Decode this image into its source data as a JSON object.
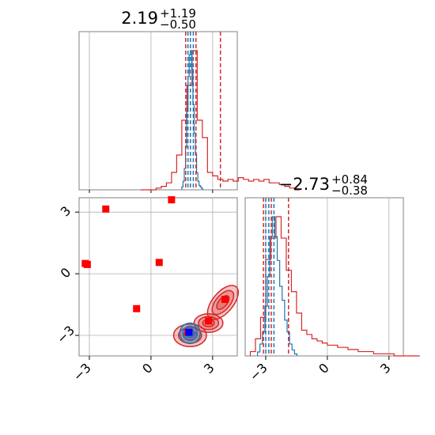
{
  "colors": {
    "blue": "#1f77b4",
    "red": "#d62728",
    "marker_red": "#ff0000",
    "marker_blue": "#0000ff",
    "grid": "#b0b0b0",
    "spine": "#808080"
  },
  "chart_data": {
    "type": "corner",
    "grid": true,
    "params": [
      {
        "title_value": "2.19",
        "title_plus": "+1.19",
        "title_minus": "−0.50",
        "range": [
          -3.5,
          4.2
        ],
        "ticks": [
          -3,
          0,
          3
        ],
        "tick_labels": [
          "−3",
          "0",
          "3"
        ]
      },
      {
        "title_value": "−2.73",
        "title_plus": "+0.84",
        "title_minus": "−0.38",
        "range": [
          -4.0,
          3.7
        ],
        "ticks": [
          -3,
          0,
          3
        ],
        "tick_labels": [
          "−3",
          "0",
          "3"
        ]
      }
    ],
    "series": [
      {
        "color_key": "red",
        "hist1d": [
          {
            "param": 0,
            "bin_width": 0.25,
            "start": -0.5,
            "values": [
              0,
              0,
              0,
              1,
              2,
              4,
              10,
              20,
              40,
              60,
              80,
              40,
              30,
              10,
              8,
              6,
              5,
              6,
              5,
              7,
              6,
              5,
              6,
              5,
              6,
              4,
              4,
              3,
              2,
              1,
              0
            ]
          },
          {
            "param": 1,
            "bin_width": 0.25,
            "start": -3.75,
            "values": [
              2,
              8,
              18,
              45,
              55,
              65,
              55,
              40,
              30,
              20,
              12,
              10,
              8,
              7,
              6,
              5,
              5,
              4,
              4,
              3,
              3,
              2,
              2,
              2,
              1,
              1,
              1,
              1,
              0,
              0,
              0,
              0,
              0
            ]
          }
        ],
        "quantile_lines": [
          {
            "param": 0,
            "x": [
              1.69,
              2.19,
              3.38
            ]
          },
          {
            "param": 1,
            "x": [
              -3.11,
              -2.73,
              -1.89
            ]
          }
        ],
        "density_blobs": [
          {
            "cx": 1.9,
            "cy": -3.0,
            "rx": 0.8,
            "ry": 0.55,
            "angle": 0
          },
          {
            "cx": 2.8,
            "cy": -2.4,
            "rx": 0.7,
            "ry": 0.45,
            "angle": 0
          },
          {
            "cx": 3.5,
            "cy": -1.4,
            "rx": 1.0,
            "ry": 0.5,
            "angle": -50
          }
        ],
        "markers": [
          {
            "x": -3.2,
            "y": 0.5
          },
          {
            "x": -3.1,
            "y": 0.45
          },
          {
            "x": -2.2,
            "y": 3.15
          },
          {
            "x": -0.7,
            "y": -1.7
          },
          {
            "x": 0.4,
            "y": 0.55
          },
          {
            "x": 1.0,
            "y": 3.6
          },
          {
            "x": 2.8,
            "y": -2.3
          },
          {
            "x": 3.6,
            "y": -1.25
          },
          {
            "x": 1.8,
            "y": -2.85
          }
        ]
      },
      {
        "color_key": "blue",
        "hist1d": [
          {
            "param": 0,
            "bin_width": 0.06,
            "start": 1.5,
            "values": [
              2,
              6,
              15,
              30,
              55,
              80,
              95,
              98,
              85,
              60,
              40,
              25,
              12,
              6,
              3,
              2,
              1
            ]
          },
          {
            "param": 1,
            "bin_width": 0.12,
            "start": -3.4,
            "values": [
              2,
              6,
              12,
              25,
              40,
              60,
              70,
              60,
              48,
              35,
              28,
              18,
              12,
              6,
              3,
              1
            ]
          }
        ],
        "quantile_lines": [
          {
            "param": 0,
            "x": [
              1.8,
              1.92,
              2.06
            ]
          },
          {
            "param": 1,
            "x": [
              -3.0,
              -2.85,
              -2.6
            ]
          }
        ],
        "density_blobs": [
          {
            "cx": 1.9,
            "cy": -2.9,
            "rx": 0.5,
            "ry": 0.5,
            "angle": 0
          }
        ],
        "markers": [
          {
            "x": 1.85,
            "y": -2.85
          }
        ]
      }
    ]
  }
}
